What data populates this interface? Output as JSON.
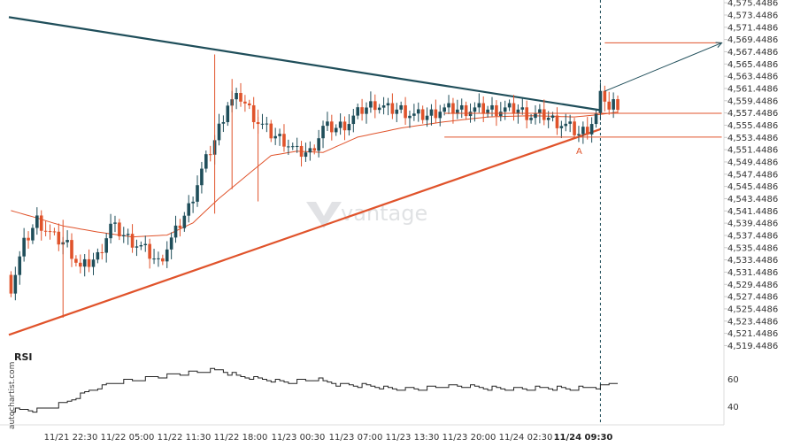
{
  "chart_data": [
    {
      "type": "candlestick",
      "title": "",
      "x_ticks": [
        "11/21 22:30",
        "11/22 05:00",
        "11/22 11:30",
        "11/22 18:00",
        "11/23 00:30",
        "11/23 07:00",
        "11/23 13:30",
        "11/23 20:00",
        "11/24 02:30",
        "11/24 09:30"
      ],
      "y_ticks": [
        "4,519.4486",
        "4,521.4486",
        "4,523.4486",
        "4,525.4486",
        "4,527.4486",
        "4,529.4486",
        "4,531.4486",
        "4,533.4486",
        "4,535.4486",
        "4,537.4486",
        "4,539.4486",
        "4,541.4486",
        "4,543.4486",
        "4,545.4486",
        "4,547.4486",
        "4,549.4486",
        "4,551.4486",
        "4,553.4486",
        "4,555.4486",
        "4,557.4486",
        "4,559.4486",
        "4,561.4486",
        "4,563.4486",
        "4,565.4486",
        "4,567.4486",
        "4,569.4486",
        "4,571.4486",
        "4,573.4486",
        "4,575.4486"
      ],
      "ylim": [
        4518.5,
        4575.9
      ],
      "colors": {
        "up": "#1f4e5a",
        "down": "#e0532b",
        "ma": "#e0532b",
        "resistance": "#1f4e5a",
        "support": "#e0532b",
        "level": "#e0532b",
        "projection": "#1f4e5a"
      },
      "resistance_line": {
        "from": [
          0,
          4573.1
        ],
        "to": [
          136,
          4557.9
        ]
      },
      "support_line": {
        "from": [
          0,
          4521.2
        ],
        "to": [
          136,
          4554.8
        ]
      },
      "levels": [
        {
          "value": 4568.9,
          "from": 137,
          "to": 164
        },
        {
          "value": 4557.4,
          "from": 100,
          "to": 164
        },
        {
          "value": 4553.5,
          "from": 100,
          "to": 164
        }
      ],
      "projection": {
        "from": [
          137,
          4561.0
        ],
        "to": [
          164,
          4568.9
        ]
      },
      "event_index": 136,
      "point_label": {
        "text": "A",
        "index": 131,
        "value": 4552.2
      },
      "candles": [],
      "ma_anchors": [
        [
          0,
          4541.5
        ],
        [
          5,
          4540.5
        ],
        [
          12,
          4539.0
        ],
        [
          20,
          4538.0
        ],
        [
          28,
          4537.2
        ],
        [
          36,
          4537.5
        ],
        [
          42,
          4539.5
        ],
        [
          48,
          4543.5
        ],
        [
          54,
          4547.0
        ],
        [
          60,
          4550.5
        ],
        [
          66,
          4551.2
        ],
        [
          72,
          4551.0
        ],
        [
          80,
          4553.5
        ],
        [
          90,
          4555.0
        ],
        [
          100,
          4556.0
        ],
        [
          110,
          4556.8
        ],
        [
          120,
          4557.0
        ],
        [
          130,
          4556.8
        ],
        [
          136,
          4557.2
        ],
        [
          140,
          4557.6
        ]
      ]
    },
    {
      "type": "line",
      "title": "RSI",
      "y_ticks": [
        "60",
        "40"
      ],
      "ylim": [
        28,
        72
      ],
      "anchors": [
        [
          0,
          37
        ],
        [
          6,
          38
        ],
        [
          12,
          42
        ],
        [
          18,
          52
        ],
        [
          24,
          58
        ],
        [
          30,
          60
        ],
        [
          36,
          63
        ],
        [
          42,
          65
        ],
        [
          48,
          67
        ],
        [
          52,
          62
        ],
        [
          58,
          60
        ],
        [
          64,
          58
        ],
        [
          70,
          60
        ],
        [
          76,
          56
        ],
        [
          82,
          55
        ],
        [
          88,
          53
        ],
        [
          94,
          53
        ],
        [
          100,
          55
        ],
        [
          106,
          55
        ],
        [
          112,
          53
        ],
        [
          118,
          53
        ],
        [
          124,
          54
        ],
        [
          130,
          53
        ],
        [
          136,
          55
        ],
        [
          140,
          58
        ]
      ]
    }
  ],
  "branding": {
    "watermark": "vantage",
    "side_label": "autochartist.com"
  }
}
